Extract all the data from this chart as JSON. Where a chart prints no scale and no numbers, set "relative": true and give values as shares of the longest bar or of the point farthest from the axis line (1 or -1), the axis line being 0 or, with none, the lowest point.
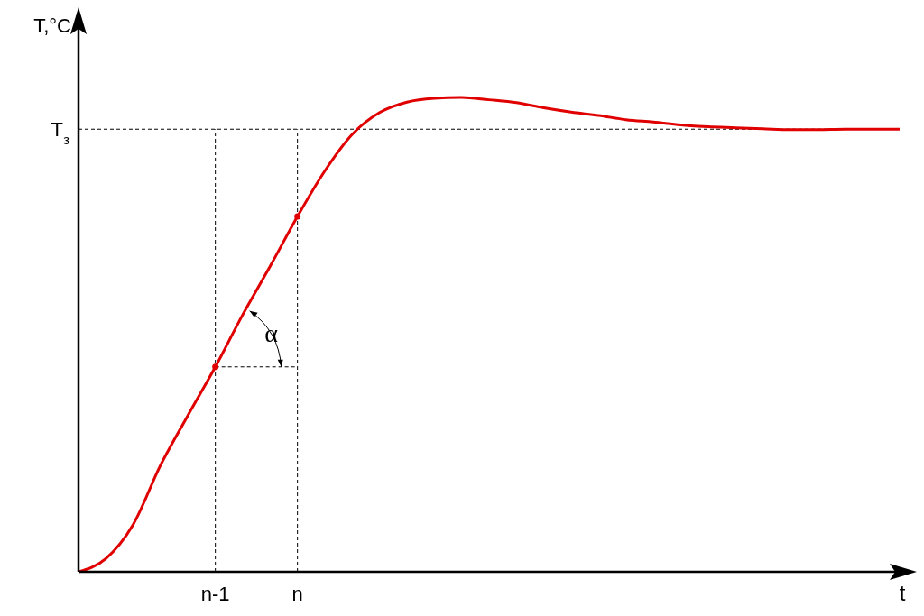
{
  "chart_data": {
    "type": "line",
    "relative": true,
    "xlabel": "t",
    "ylabel": "T,°C",
    "categories": [
      null,
      null,
      null,
      null,
      null,
      "n-1",
      null,
      null,
      "n",
      null,
      null,
      null,
      null,
      null,
      null,
      null,
      null,
      null,
      null,
      null,
      null,
      null,
      null,
      null,
      null,
      null,
      null,
      null,
      null,
      null,
      null
    ],
    "series": [
      {
        "color": "#e00000",
        "values": [
          0,
          0.028,
          0.1,
          0.225,
          0.33,
          0.432,
          0.542,
          0.644,
          0.749,
          0.845,
          0.922,
          0.968,
          0.99,
          0.998,
          1,
          0.995,
          0.989,
          0.978,
          0.969,
          0.962,
          0.953,
          0.948,
          0.942,
          0.938,
          0.936,
          0.934,
          0.932,
          0.932,
          0.933,
          0.933,
          0.933
        ]
      },
      {
        "type": "scatter",
        "color": "#e00000",
        "marker": "circle",
        "values": [
          null,
          null,
          null,
          null,
          null,
          0.432,
          null,
          null,
          0.749,
          null,
          null,
          null,
          null,
          null,
          null,
          null,
          null,
          null,
          null,
          null,
          null,
          null,
          null,
          null,
          null,
          null,
          null,
          null,
          null,
          null,
          null
        ]
      }
    ],
    "ref_lines": [
      {
        "axis": "y",
        "value": 0.933,
        "label": "T$_{з}$",
        "line_style": "dashed"
      },
      {
        "axis": "x",
        "value": "n-1",
        "line_style": "dashed"
      },
      {
        "axis": "x",
        "value": "n",
        "line_style": "dashed"
      }
    ],
    "annotations": [
      "α"
    ]
  }
}
